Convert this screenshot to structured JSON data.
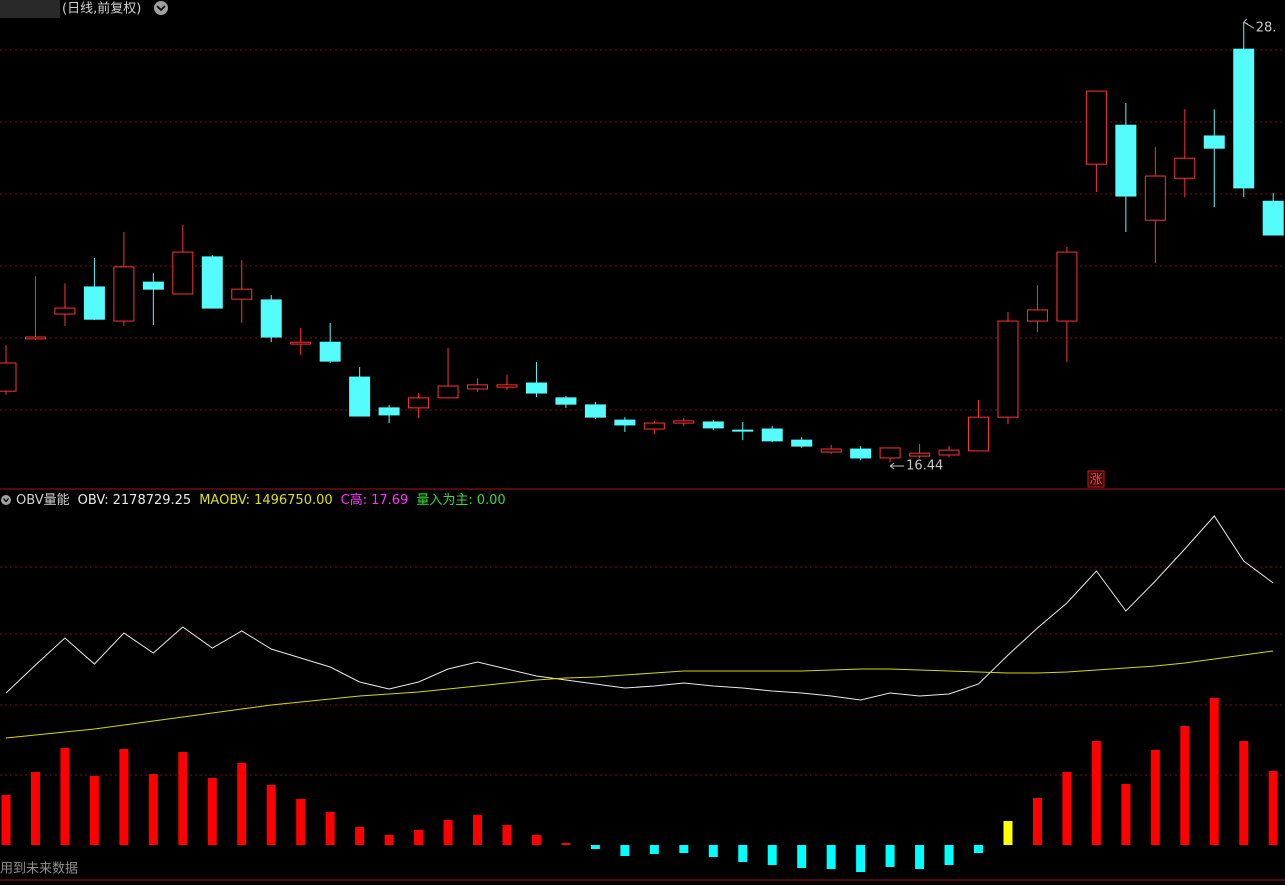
{
  "header": {
    "title": "(日线,前复权)"
  },
  "chart_data": [
    {
      "type": "candlestick",
      "open": [
        18.35,
        19.76,
        20.43,
        21.16,
        20.24,
        21.29,
        20.97,
        21.97,
        20.83,
        20.81,
        19.62,
        19.67,
        18.73,
        17.9,
        17.9,
        18.17,
        18.41,
        18.46,
        18.57,
        18.17,
        17.98,
        17.57,
        17.33,
        17.49,
        17.52,
        17.3,
        17.33,
        17.03,
        16.71,
        16.79,
        16.55,
        16.6,
        16.63,
        16.74,
        17.65,
        20.24,
        20.24,
        24.47,
        25.52,
        22.96,
        24.09,
        25.23,
        27.57,
        23.47
      ],
      "high": [
        19.59,
        21.45,
        21.26,
        21.94,
        22.64,
        21.53,
        22.83,
        22.02,
        21.88,
        20.94,
        20.05,
        20.19,
        19.0,
        17.98,
        18.3,
        19.51,
        18.7,
        18.79,
        19.14,
        18.22,
        18.06,
        17.65,
        17.55,
        17.63,
        17.57,
        17.52,
        17.41,
        17.11,
        16.9,
        16.87,
        16.82,
        16.93,
        16.87,
        18.11,
        20.48,
        21.21,
        22.24,
        26.44,
        26.12,
        24.93,
        25.95,
        25.95,
        28.3,
        23.69
      ],
      "low": [
        18.25,
        19.73,
        20.11,
        20.27,
        20.11,
        20.13,
        20.97,
        20.59,
        20.19,
        19.67,
        19.32,
        19.11,
        17.68,
        17.49,
        17.63,
        18.17,
        18.33,
        18.38,
        18.19,
        17.9,
        17.6,
        17.25,
        17.19,
        17.41,
        17.3,
        17.03,
        16.98,
        16.82,
        16.66,
        16.49,
        16.44,
        16.55,
        16.57,
        16.74,
        17.46,
        19.94,
        19.14,
        23.72,
        22.64,
        21.8,
        23.58,
        23.31,
        23.58,
        22.56
      ],
      "close": [
        19.11,
        19.81,
        20.59,
        20.29,
        21.7,
        21.1,
        22.1,
        20.59,
        21.1,
        19.81,
        19.67,
        19.16,
        17.68,
        17.71,
        18.17,
        18.49,
        18.52,
        18.52,
        18.3,
        18.0,
        17.65,
        17.44,
        17.49,
        17.55,
        17.36,
        17.28,
        17.01,
        16.87,
        16.79,
        16.55,
        16.82,
        16.68,
        16.76,
        17.65,
        20.24,
        20.54,
        22.1,
        26.44,
        23.61,
        24.15,
        24.63,
        24.9,
        23.83,
        22.56
      ],
      "ylim": [
        15.74,
        28.41
      ],
      "up_color": "#ff3232",
      "down_color": "#54fcfc",
      "max_label": "28.",
      "min_label": "16.44",
      "marker": "涨"
    },
    {
      "type": "line",
      "title": "OBV量能",
      "series": [
        {
          "name": "OBV",
          "color": "#e8e8e8",
          "values": [
            1075500,
            1356400,
            1627100,
            1366400,
            1677300,
            1476700,
            1737500,
            1526800,
            1697300,
            1516800,
            1426600,
            1336300,
            1185900,
            1115600,
            1185900,
            1316200,
            1386400,
            1316200,
            1246000,
            1205900,
            1165800,
            1125700,
            1145700,
            1175800,
            1145700,
            1125700,
            1095600,
            1075500,
            1045500,
            1005300,
            1075500,
            1045500,
            1065500,
            1165800,
            1456600,
            1727400,
            1978100,
            2299100,
            1897900,
            2198800,
            2519700,
            2850700,
            2399400,
            2178729.25
          ]
        },
        {
          "name": "MAOBV",
          "color": "#d8d800",
          "values": [
            624200,
            654300,
            684400,
            714500,
            754600,
            794700,
            834800,
            875000,
            915100,
            955200,
            985300,
            1015400,
            1045400,
            1065500,
            1085600,
            1115650,
            1145700,
            1175800,
            1205900,
            1225970,
            1236000,
            1256100,
            1276100,
            1296200,
            1296200,
            1296200,
            1296200,
            1296200,
            1306200,
            1316200,
            1316200,
            1306200,
            1296200,
            1286100,
            1276100,
            1276100,
            1286100,
            1306200,
            1326300,
            1346300,
            1376400,
            1416500,
            1456600,
            1496750
          ]
        }
      ],
      "ylim": [
        -800000,
        3111400
      ]
    },
    {
      "type": "bar",
      "values": [
        50,
        73,
        97,
        69,
        96,
        71,
        93,
        67,
        82,
        60,
        46,
        33,
        18,
        10,
        15,
        25,
        30,
        20,
        10,
        2,
        -4,
        -11,
        -9,
        -8,
        -12,
        -17,
        -20,
        -23,
        -24,
        -27,
        -22,
        -24,
        -20,
        -8,
        24,
        47,
        73,
        104,
        61,
        95,
        119,
        147,
        104,
        74
      ],
      "colors": [
        "#ff0000",
        "#ff0000",
        "#ff0000",
        "#ff0000",
        "#ff0000",
        "#ff0000",
        "#ff0000",
        "#ff0000",
        "#ff0000",
        "#ff0000",
        "#ff0000",
        "#ff0000",
        "#ff0000",
        "#ff0000",
        "#ff0000",
        "#ff0000",
        "#ff0000",
        "#ff0000",
        "#ff0000",
        "#ff0000",
        "#00ffff",
        "#00ffff",
        "#00ffff",
        "#00ffff",
        "#00ffff",
        "#00ffff",
        "#00ffff",
        "#00ffff",
        "#00ffff",
        "#00ffff",
        "#00ffff",
        "#00ffff",
        "#00ffff",
        "#00ffff",
        "#ffff00",
        "#ff0000",
        "#ff0000",
        "#ff0000",
        "#ff0000",
        "#ff0000",
        "#ff0000",
        "#ff0000",
        "#ff0000",
        "#ff0000"
      ],
      "ylim": [
        -35,
        355
      ]
    }
  ],
  "readouts": [
    {
      "name": "OBV:",
      "value": 2178729.25,
      "label": "2178729.25",
      "color": "#e8e8e8"
    },
    {
      "name": "MAOBV:",
      "value": 1496750,
      "label": "1496750.00",
      "color": "#e0e000"
    },
    {
      "name": "C高:",
      "value": 17.69,
      "label": "17.69",
      "color": "#ff33ff"
    },
    {
      "name": "量入为主:",
      "value": 0,
      "label": "0.00",
      "color": "#33dd33"
    }
  ],
  "footer": "用到未来数据"
}
